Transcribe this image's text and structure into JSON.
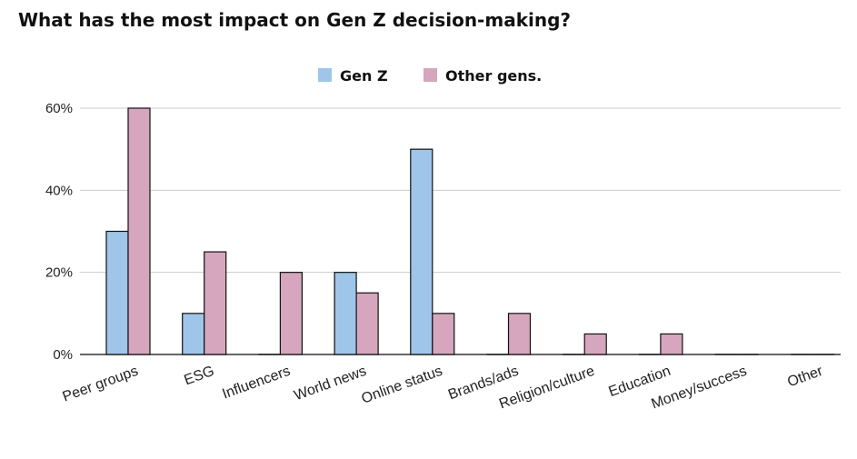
{
  "chart_data": {
    "type": "bar",
    "title": "What has the most impact on Gen Z decision-making?",
    "categories": [
      "Peer groups",
      "ESG",
      "Influencers",
      "World news",
      "Online status",
      "Brands/ads",
      "Religion/culture",
      "Education",
      "Money/success",
      "Other"
    ],
    "series": [
      {
        "name": "Gen Z",
        "color": "#9fc5e8",
        "values": [
          30,
          10,
          0,
          20,
          50,
          0,
          0,
          0,
          0,
          0
        ]
      },
      {
        "name": "Other gens.",
        "color": "#d5a6bd",
        "values": [
          60,
          25,
          20,
          15,
          10,
          10,
          5,
          5,
          0,
          0
        ]
      }
    ],
    "yticks": [
      "0%",
      "20%",
      "40%",
      "60%"
    ],
    "ylim": [
      0,
      60
    ],
    "grid": true,
    "legend": "top-center",
    "xlabel": "",
    "ylabel": ""
  }
}
